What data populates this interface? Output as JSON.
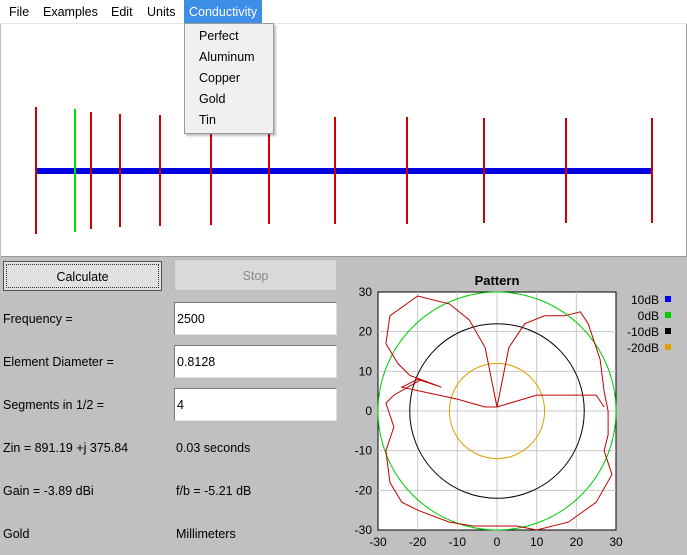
{
  "menu": {
    "items": [
      "File",
      "Examples",
      "Edit",
      "Units",
      "Conductivity"
    ],
    "active": "Conductivity"
  },
  "conductivity_menu": {
    "options": [
      "Perfect",
      "Aluminum",
      "Copper",
      "Gold",
      "Tin"
    ]
  },
  "antenna": {
    "boom_color": "#0000e0",
    "element_color": "#d00000",
    "driven_color": "#00e000"
  },
  "buttons": {
    "calculate": "Calculate",
    "stop": "Stop"
  },
  "fields": {
    "frequency_label": "Frequency =",
    "frequency_value": "2500",
    "diameter_label": "Element Diameter =",
    "diameter_value": "0.8128",
    "segments_label": "Segments in 1/2 =",
    "segments_value": "4"
  },
  "results": {
    "zin": "Zin = 891.19 +j 375.84",
    "time": "0.03 seconds",
    "gain": "Gain = -3.89 dBi",
    "fb": "f/b = -5.21 dB",
    "material": "Gold",
    "units": "Millimeters"
  },
  "chart_data": {
    "type": "polar-pattern",
    "title": "Pattern",
    "xlim": [
      -30,
      30
    ],
    "ylim": [
      -30,
      30
    ],
    "x_ticks": [
      "-30",
      "-20",
      "-10",
      "0",
      "10",
      "20",
      "30"
    ],
    "y_ticks": [
      "30",
      "20",
      "10",
      "0",
      "-10",
      "-20",
      "-30"
    ],
    "grid": true,
    "legend_placement": "right",
    "reference_circles": [
      {
        "name": "10dB",
        "radius": 30,
        "color": "#0000ff"
      },
      {
        "name": "0dB",
        "radius": 30,
        "color": "#00d000"
      },
      {
        "name": "-10dB",
        "radius": 22,
        "color": "#000000"
      },
      {
        "name": "-20dB",
        "radius": 12,
        "color": "#e0a000"
      }
    ],
    "pattern_color": "#c00000",
    "pattern_lobes": [
      {
        "points": [
          [
            0,
            1
          ],
          [
            -3,
            16
          ],
          [
            -7,
            23
          ],
          [
            -12,
            27
          ],
          [
            -20,
            29
          ],
          [
            -27,
            24
          ],
          [
            -28,
            17
          ],
          [
            -25,
            12
          ],
          [
            -22,
            9
          ],
          [
            -14,
            6
          ],
          [
            -20,
            8
          ],
          [
            -24,
            6
          ],
          [
            -10,
            3
          ],
          [
            -3,
            1
          ],
          [
            0,
            1
          ]
        ]
      },
      {
        "points": [
          [
            0,
            1
          ],
          [
            3,
            16
          ],
          [
            7,
            22
          ],
          [
            12,
            24
          ],
          [
            17,
            24
          ],
          [
            21,
            25
          ],
          [
            23,
            22
          ],
          [
            26,
            13
          ],
          [
            27,
            5
          ],
          [
            28,
            0
          ],
          [
            28,
            -6
          ],
          [
            27,
            -10
          ],
          [
            29,
            -16
          ],
          [
            25,
            -23
          ],
          [
            18,
            -28
          ],
          [
            10,
            -30
          ],
          [
            5,
            -29
          ],
          [
            0,
            -29
          ],
          [
            -6,
            -29
          ],
          [
            -12,
            -28
          ],
          [
            -20,
            -25
          ],
          [
            -24,
            -23
          ],
          [
            -27,
            -18
          ],
          [
            -28,
            -10
          ],
          [
            -26,
            -4
          ],
          [
            -28,
            2
          ],
          [
            -26,
            4
          ],
          [
            -19,
            8
          ]
        ]
      },
      {
        "points": [
          [
            0,
            1
          ],
          [
            10,
            4
          ],
          [
            20,
            4
          ],
          [
            25,
            4
          ],
          [
            27,
            1
          ]
        ]
      }
    ]
  }
}
